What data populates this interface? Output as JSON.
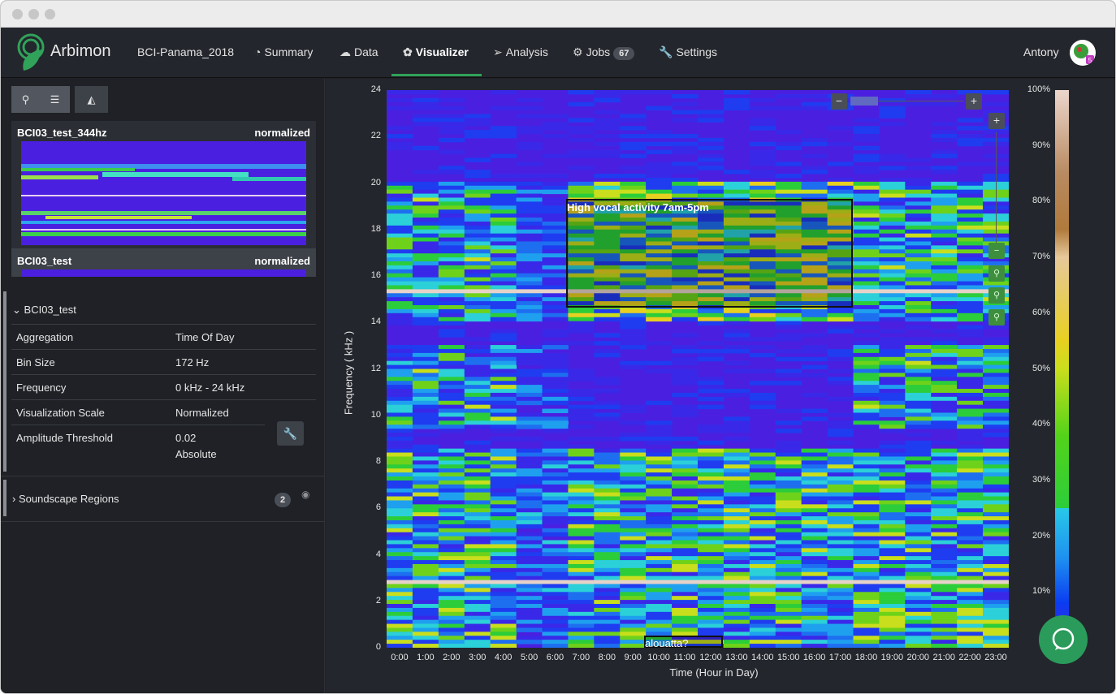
{
  "brand": {
    "name": "Arbimon"
  },
  "nav": {
    "project": "BCI-Panama_2018",
    "items": [
      {
        "label": "Summary",
        "icon": "dashboard-icon"
      },
      {
        "label": "Data",
        "icon": "cloud-upload-icon"
      },
      {
        "label": "Visualizer",
        "icon": "biohazard-icon"
      },
      {
        "label": "Analysis",
        "icon": "paper-plane-icon"
      },
      {
        "label": "Jobs",
        "icon": "gears-icon"
      },
      {
        "label": "Settings",
        "icon": "wrench-icon"
      }
    ],
    "jobs_count": "67",
    "active": "Visualizer",
    "user": "Antony"
  },
  "sidebar": {
    "toolbar": [
      "map-marker-icon",
      "list-icon",
      "area-chart-icon"
    ],
    "thumbnails": [
      {
        "title": "BCI03_test_344hz",
        "scale": "normalized"
      },
      {
        "title": "BCI03_test",
        "scale": "normalized"
      }
    ],
    "details": {
      "title": "BCI03_test",
      "rows": [
        {
          "label": "Aggregation",
          "value": "Time Of Day"
        },
        {
          "label": "Bin Size",
          "value": "172 Hz"
        },
        {
          "label": "Frequency",
          "value": "0 kHz - 24 kHz"
        },
        {
          "label": "Visualization Scale",
          "value": "Normalized"
        },
        {
          "label": "Amplitude Threshold",
          "value": "0.02",
          "value2": "Absolute"
        }
      ]
    },
    "regions": {
      "label": "Soundscape Regions",
      "count": "2"
    }
  },
  "chart_data": {
    "type": "heatmap",
    "xlabel": "Time (Hour in Day)",
    "ylabel": "Frequency ( kHz )",
    "x_ticks": [
      "0:00",
      "1:00",
      "2:00",
      "3:00",
      "4:00",
      "5:00",
      "6:00",
      "7:00",
      "8:00",
      "9:00",
      "10:00",
      "11:00",
      "12:00",
      "13:00",
      "14:00",
      "15:00",
      "16:00",
      "17:00",
      "18:00",
      "19:00",
      "20:00",
      "21:00",
      "22:00",
      "23:00"
    ],
    "y_ticks": [
      "0",
      "2",
      "4",
      "6",
      "8",
      "10",
      "12",
      "14",
      "16",
      "18",
      "20",
      "22",
      "24"
    ],
    "ylim": [
      0,
      24
    ],
    "colorbar_ticks": [
      "0",
      "10%",
      "20%",
      "30%",
      "40%",
      "50%",
      "60%",
      "70%",
      "80%",
      "90%",
      "100%"
    ],
    "regions": [
      {
        "label": "High vocal activity 7am-5pm",
        "x_start": "7:00",
        "x_end": "17:00",
        "y_range_khz": [
          14.6,
          19.2
        ]
      },
      {
        "label": "alouatta?",
        "x_start": "10:00",
        "x_end": "12:00",
        "y_range_khz": [
          0,
          0.5
        ]
      }
    ]
  },
  "colors": {
    "accent": "#31a25a",
    "background": "#23262c",
    "heatmap_base": "#4b1fe0"
  }
}
